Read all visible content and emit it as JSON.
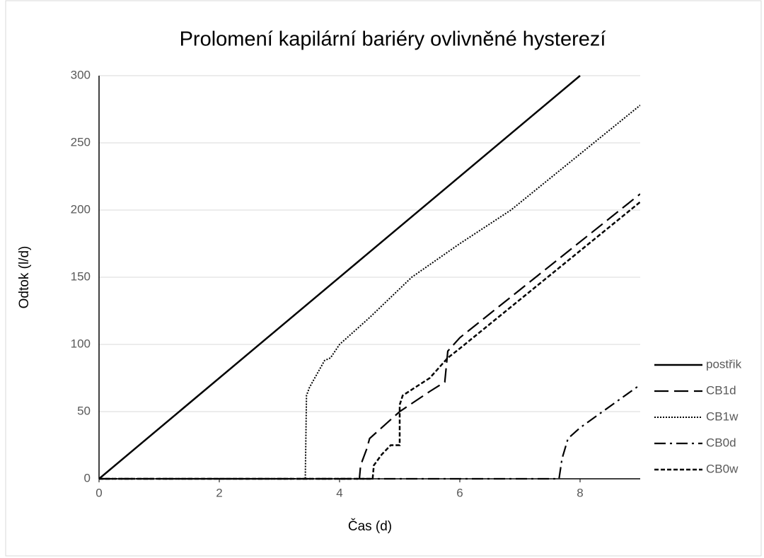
{
  "chart_data": {
    "type": "line",
    "title": "Prolomení kapilární bariéry ovlivněné hysterezí",
    "xlabel": "Čas (d)",
    "ylabel": "Odtok (l/d)",
    "xlim": [
      0,
      9
    ],
    "xticks": [
      0,
      2,
      4,
      6,
      8
    ],
    "ylim": [
      0,
      300
    ],
    "yticks": [
      0,
      50,
      100,
      150,
      200,
      250,
      300
    ],
    "grid": true,
    "legend": "right",
    "series": [
      {
        "name": "postřik",
        "color": "#000000",
        "x": [
          0,
          8
        ],
        "values": [
          0,
          300
        ]
      },
      {
        "name": "CB1d",
        "color": "#000000",
        "x": [
          0,
          4.33,
          4.35,
          4.45,
          4.5,
          5.0,
          5.5,
          5.75,
          5.8,
          6.0,
          9
        ],
        "values": [
          0,
          0,
          10,
          22,
          30,
          50,
          65,
          72,
          95,
          105,
          212
        ]
      },
      {
        "name": "CB1w",
        "color": "#000000",
        "x": [
          0,
          3.43,
          3.45,
          3.5,
          3.75,
          3.85,
          4.0,
          4.2,
          4.5,
          5.2,
          6.0,
          6.85,
          9
        ],
        "values": [
          0,
          0,
          62,
          68,
          88,
          90,
          100,
          108,
          120,
          150,
          175,
          200,
          278
        ]
      },
      {
        "name": "CB0d",
        "color": "#000000",
        "x": [
          0,
          7.65,
          7.7,
          7.8,
          8.0,
          9
        ],
        "values": [
          0,
          0,
          15,
          30,
          38,
          70
        ]
      },
      {
        "name": "CB0w",
        "color": "#000000",
        "x": [
          0,
          4.55,
          4.57,
          4.7,
          4.85,
          5.0,
          5.0,
          5.05,
          5.5,
          5.8,
          6.0,
          9
        ],
        "values": [
          0,
          0,
          10,
          18,
          25,
          25,
          55,
          62,
          75,
          90,
          97,
          206
        ]
      }
    ]
  }
}
